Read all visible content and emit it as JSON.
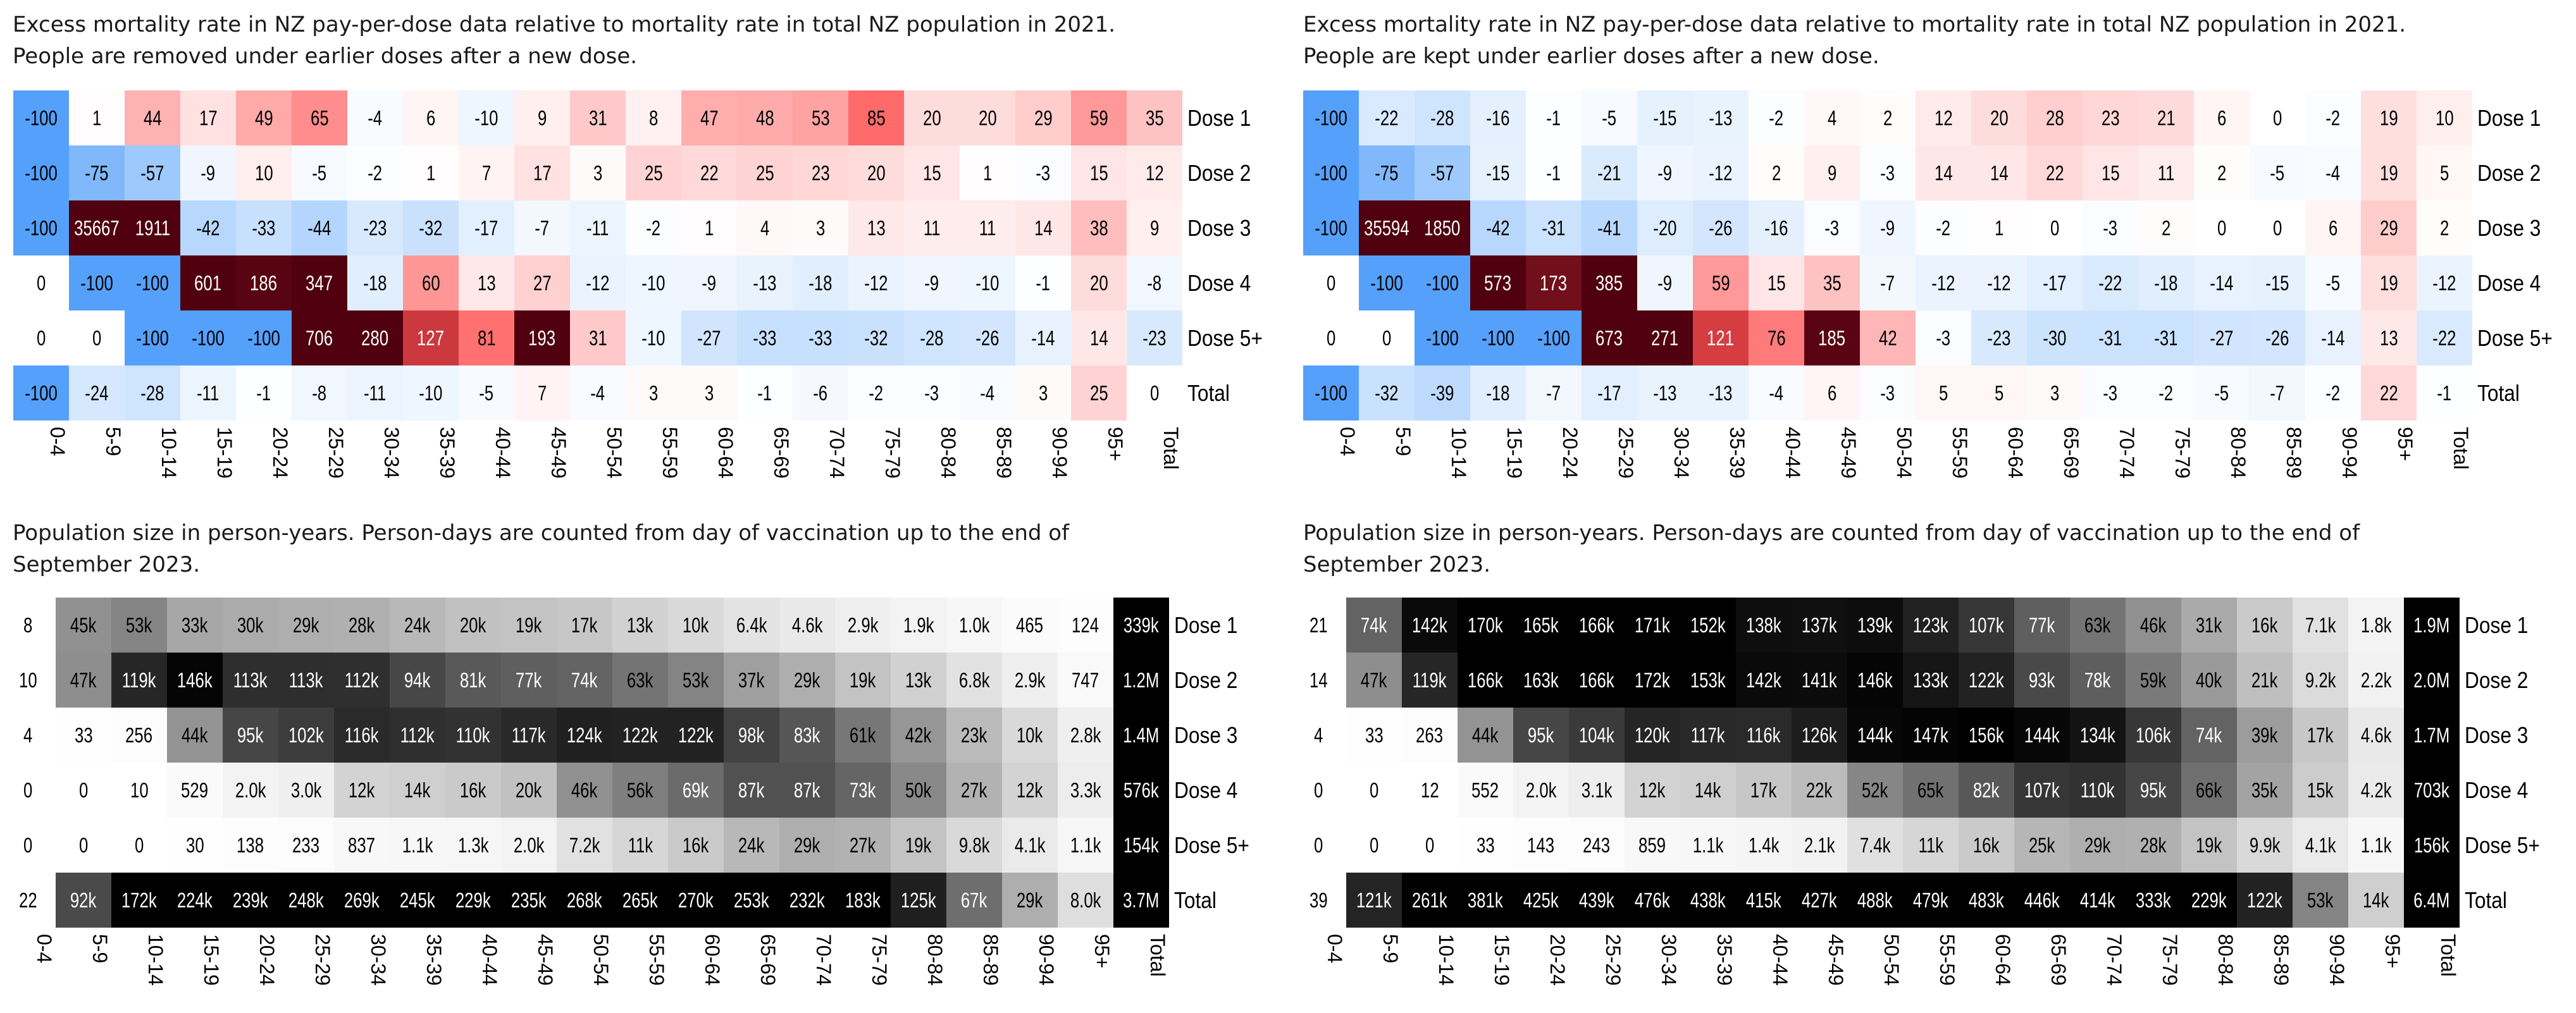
{
  "chart_data": [
    {
      "type": "heatmap",
      "title_lines": [
        "Excess mortality rate in NZ pay-per-dose data relative to mortality rate in total NZ population in 2021.",
        "People are removed under earlier doses after a new dose."
      ],
      "columns": [
        "0-4",
        "5-9",
        "10-14",
        "15-19",
        "20-24",
        "25-29",
        "30-34",
        "35-39",
        "40-44",
        "45-49",
        "50-54",
        "55-59",
        "60-64",
        "65-69",
        "70-74",
        "75-79",
        "80-84",
        "85-89",
        "90-94",
        "95+",
        "Total"
      ],
      "rows": [
        "Dose 1",
        "Dose 2",
        "Dose 3",
        "Dose 4",
        "Dose 5+",
        "Total"
      ],
      "color_scale": {
        "negative": "#55a0fa",
        "zero": "#ffffff",
        "positive": "#ff5050",
        "extreme": "#50000f"
      },
      "values": [
        [
          -100,
          1,
          44,
          17,
          49,
          65,
          -4,
          6,
          -10,
          9,
          31,
          8,
          47,
          48,
          53,
          85,
          20,
          20,
          29,
          59,
          35
        ],
        [
          -100,
          -75,
          -57,
          -9,
          10,
          -5,
          -2,
          1,
          7,
          17,
          3,
          25,
          22,
          25,
          23,
          20,
          15,
          1,
          -3,
          15,
          12
        ],
        [
          -100,
          35667,
          1911,
          -42,
          -33,
          -44,
          -23,
          -32,
          -17,
          -7,
          -11,
          -2,
          1,
          4,
          3,
          13,
          11,
          11,
          14,
          38,
          9
        ],
        [
          0,
          -100,
          -100,
          601,
          186,
          347,
          -18,
          60,
          13,
          27,
          -12,
          -10,
          -9,
          -13,
          -18,
          -12,
          -9,
          -10,
          -1,
          20,
          -8
        ],
        [
          0,
          0,
          -100,
          -100,
          -100,
          706,
          280,
          127,
          81,
          193,
          31,
          -10,
          -27,
          -33,
          -33,
          -32,
          -28,
          -26,
          -14,
          14,
          -23
        ],
        [
          -100,
          -24,
          -28,
          -11,
          -1,
          -8,
          -11,
          -10,
          -5,
          7,
          -4,
          3,
          3,
          -1,
          -6,
          -2,
          -3,
          -4,
          3,
          25,
          0
        ]
      ]
    },
    {
      "type": "heatmap",
      "title_lines": [
        "Excess mortality rate in NZ pay-per-dose data relative to mortality rate in total NZ population in 2021.",
        "People are kept under earlier doses after a new dose."
      ],
      "columns": [
        "0-4",
        "5-9",
        "10-14",
        "15-19",
        "20-24",
        "25-29",
        "30-34",
        "35-39",
        "40-44",
        "45-49",
        "50-54",
        "55-59",
        "60-64",
        "65-69",
        "70-74",
        "75-79",
        "80-84",
        "85-89",
        "90-94",
        "95+",
        "Total"
      ],
      "rows": [
        "Dose 1",
        "Dose 2",
        "Dose 3",
        "Dose 4",
        "Dose 5+",
        "Total"
      ],
      "color_scale": {
        "negative": "#55a0fa",
        "zero": "#ffffff",
        "positive": "#ff5050",
        "extreme": "#50000f"
      },
      "values": [
        [
          -100,
          -22,
          -28,
          -16,
          -1,
          -5,
          -15,
          -13,
          -2,
          4,
          2,
          12,
          20,
          28,
          23,
          21,
          6,
          0,
          -2,
          19,
          10
        ],
        [
          -100,
          -75,
          -57,
          -15,
          -1,
          -21,
          -9,
          -12,
          2,
          9,
          -3,
          14,
          14,
          22,
          15,
          11,
          2,
          -5,
          -4,
          19,
          5
        ],
        [
          -100,
          35594,
          1850,
          -42,
          -31,
          -41,
          -20,
          -26,
          -16,
          -3,
          -9,
          -2,
          1,
          0,
          -3,
          2,
          0,
          0,
          6,
          29,
          2
        ],
        [
          0,
          -100,
          -100,
          573,
          173,
          385,
          -9,
          59,
          15,
          35,
          -7,
          -12,
          -12,
          -17,
          -22,
          -18,
          -14,
          -15,
          -5,
          19,
          -12
        ],
        [
          0,
          0,
          -100,
          -100,
          -100,
          673,
          271,
          121,
          76,
          185,
          42,
          -3,
          -23,
          -30,
          -31,
          -31,
          -27,
          -26,
          -14,
          13,
          -22
        ],
        [
          -100,
          -32,
          -39,
          -18,
          -7,
          -17,
          -13,
          -13,
          -4,
          6,
          -3,
          5,
          5,
          3,
          -3,
          -2,
          -5,
          -7,
          -2,
          22,
          -1
        ]
      ]
    },
    {
      "type": "heatmap",
      "title_lines": [
        "Population size in person-years. Person-days are counted from day of vaccination up to the end of",
        "September 2023."
      ],
      "columns": [
        "0-4",
        "5-9",
        "10-14",
        "15-19",
        "20-24",
        "25-29",
        "30-34",
        "35-39",
        "40-44",
        "45-49",
        "50-54",
        "55-59",
        "60-64",
        "65-69",
        "70-74",
        "75-79",
        "80-84",
        "85-89",
        "90-94",
        "95+",
        "Total"
      ],
      "rows": [
        "Dose 1",
        "Dose 2",
        "Dose 3",
        "Dose 4",
        "Dose 5+",
        "Total"
      ],
      "color_scale": {
        "low": "#ffffff",
        "high": "#000000"
      },
      "values": [
        [
          "8",
          "45k",
          "53k",
          "33k",
          "30k",
          "29k",
          "28k",
          "24k",
          "20k",
          "19k",
          "17k",
          "13k",
          "10k",
          "6.4k",
          "4.6k",
          "2.9k",
          "1.9k",
          "1.0k",
          "465",
          "124",
          "339k"
        ],
        [
          "10",
          "47k",
          "119k",
          "146k",
          "113k",
          "113k",
          "112k",
          "94k",
          "81k",
          "77k",
          "74k",
          "63k",
          "53k",
          "37k",
          "29k",
          "19k",
          "13k",
          "6.8k",
          "2.9k",
          "747",
          "1.2M"
        ],
        [
          "4",
          "33",
          "256",
          "44k",
          "95k",
          "102k",
          "116k",
          "112k",
          "110k",
          "117k",
          "124k",
          "122k",
          "122k",
          "98k",
          "83k",
          "61k",
          "42k",
          "23k",
          "10k",
          "2.8k",
          "1.4M"
        ],
        [
          "0",
          "0",
          "10",
          "529",
          "2.0k",
          "3.0k",
          "12k",
          "14k",
          "16k",
          "20k",
          "46k",
          "56k",
          "69k",
          "87k",
          "87k",
          "73k",
          "50k",
          "27k",
          "12k",
          "3.3k",
          "576k"
        ],
        [
          "0",
          "0",
          "0",
          "30",
          "138",
          "233",
          "837",
          "1.1k",
          "1.3k",
          "2.0k",
          "7.2k",
          "11k",
          "16k",
          "24k",
          "29k",
          "27k",
          "19k",
          "9.8k",
          "4.1k",
          "1.1k",
          "154k"
        ],
        [
          "22",
          "92k",
          "172k",
          "224k",
          "239k",
          "248k",
          "269k",
          "245k",
          "229k",
          "235k",
          "268k",
          "265k",
          "270k",
          "253k",
          "232k",
          "183k",
          "125k",
          "67k",
          "29k",
          "8.0k",
          "3.7M"
        ]
      ]
    },
    {
      "type": "heatmap",
      "title_lines": [
        "Population size in person-years. Person-days are counted from day of vaccination up to the end of",
        "September 2023."
      ],
      "columns": [
        "0-4",
        "5-9",
        "10-14",
        "15-19",
        "20-24",
        "25-29",
        "30-34",
        "35-39",
        "40-44",
        "45-49",
        "50-54",
        "55-59",
        "60-64",
        "65-69",
        "70-74",
        "75-79",
        "80-84",
        "85-89",
        "90-94",
        "95+",
        "Total"
      ],
      "rows": [
        "Dose 1",
        "Dose 2",
        "Dose 3",
        "Dose 4",
        "Dose 5+",
        "Total"
      ],
      "color_scale": {
        "low": "#ffffff",
        "high": "#000000"
      },
      "values": [
        [
          "21",
          "74k",
          "142k",
          "170k",
          "165k",
          "166k",
          "171k",
          "152k",
          "138k",
          "137k",
          "139k",
          "123k",
          "107k",
          "77k",
          "63k",
          "46k",
          "31k",
          "16k",
          "7.1k",
          "1.8k",
          "1.9M"
        ],
        [
          "14",
          "47k",
          "119k",
          "166k",
          "163k",
          "166k",
          "172k",
          "153k",
          "142k",
          "141k",
          "146k",
          "133k",
          "122k",
          "93k",
          "78k",
          "59k",
          "40k",
          "21k",
          "9.2k",
          "2.2k",
          "2.0M"
        ],
        [
          "4",
          "33",
          "263",
          "44k",
          "95k",
          "104k",
          "120k",
          "117k",
          "116k",
          "126k",
          "144k",
          "147k",
          "156k",
          "144k",
          "134k",
          "106k",
          "74k",
          "39k",
          "17k",
          "4.6k",
          "1.7M"
        ],
        [
          "0",
          "0",
          "12",
          "552",
          "2.0k",
          "3.1k",
          "12k",
          "14k",
          "17k",
          "22k",
          "52k",
          "65k",
          "82k",
          "107k",
          "110k",
          "95k",
          "66k",
          "35k",
          "15k",
          "4.2k",
          "703k"
        ],
        [
          "0",
          "0",
          "0",
          "33",
          "143",
          "243",
          "859",
          "1.1k",
          "1.4k",
          "2.1k",
          "7.4k",
          "11k",
          "16k",
          "25k",
          "29k",
          "28k",
          "19k",
          "9.9k",
          "4.1k",
          "1.1k",
          "156k"
        ],
        [
          "39",
          "121k",
          "261k",
          "381k",
          "425k",
          "439k",
          "476k",
          "438k",
          "415k",
          "427k",
          "488k",
          "479k",
          "483k",
          "446k",
          "414k",
          "333k",
          "229k",
          "122k",
          "53k",
          "14k",
          "6.4M"
        ]
      ]
    }
  ]
}
